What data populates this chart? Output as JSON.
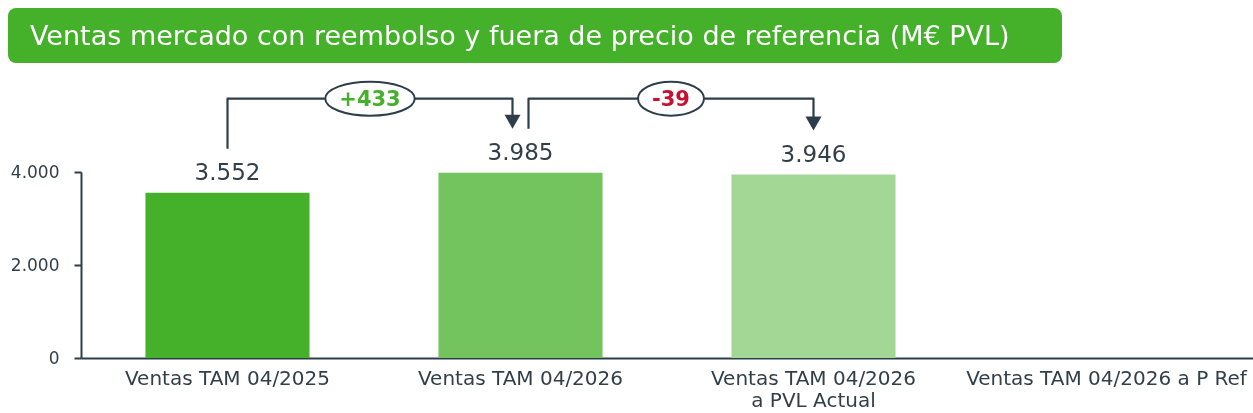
{
  "chart_data": {
    "type": "bar",
    "title": "Ventas mercado con reembolso y fuera de precio de referencia (M€ PVL)",
    "categories": [
      "Ventas TAM 04/2025",
      "Ventas TAM 04/2026",
      "Ventas TAM 04/2026 a PVL Actual",
      "Ventas TAM 04/2026 a P Ref"
    ],
    "values": [
      3552,
      3985,
      3946,
      null
    ],
    "colors": [
      "#45b02a",
      "#73c45f",
      "#a3d796",
      null
    ],
    "value_labels": [
      "3.552",
      "3.985",
      "3.946",
      null
    ],
    "ylim": [
      0,
      4000
    ],
    "yticks": [
      0,
      {
        "value": 2000,
        "label": "2.000"
      },
      {
        "value": 4000,
        "label": "4.000"
      }
    ],
    "annotations": [
      "+433",
      "-39"
    ]
  }
}
